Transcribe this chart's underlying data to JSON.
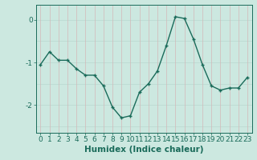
{
  "x": [
    0,
    1,
    2,
    3,
    4,
    5,
    6,
    7,
    8,
    9,
    10,
    11,
    12,
    13,
    14,
    15,
    16,
    17,
    18,
    19,
    20,
    21,
    22,
    23
  ],
  "y": [
    -1.05,
    -0.75,
    -0.95,
    -0.95,
    -1.15,
    -1.3,
    -1.3,
    -1.55,
    -2.05,
    -2.3,
    -2.25,
    -1.7,
    -1.5,
    -1.2,
    -0.6,
    0.07,
    0.03,
    -0.45,
    -1.05,
    -1.55,
    -1.65,
    -1.6,
    -1.6,
    -1.35
  ],
  "line_color": "#1a6b5a",
  "marker": "+",
  "background_color": "#cce8e0",
  "grid_color_h": "#b8d8d0",
  "grid_color_v": "#d4b8b8",
  "xlabel": "Humidex (Indice chaleur)",
  "xlim": [
    -0.5,
    23.5
  ],
  "ylim": [
    -2.65,
    0.35
  ],
  "yticks": [
    0,
    -1,
    -2
  ],
  "xlabel_fontsize": 7.5,
  "tick_fontsize": 6.5,
  "marker_size": 3.5,
  "line_width": 1.0
}
